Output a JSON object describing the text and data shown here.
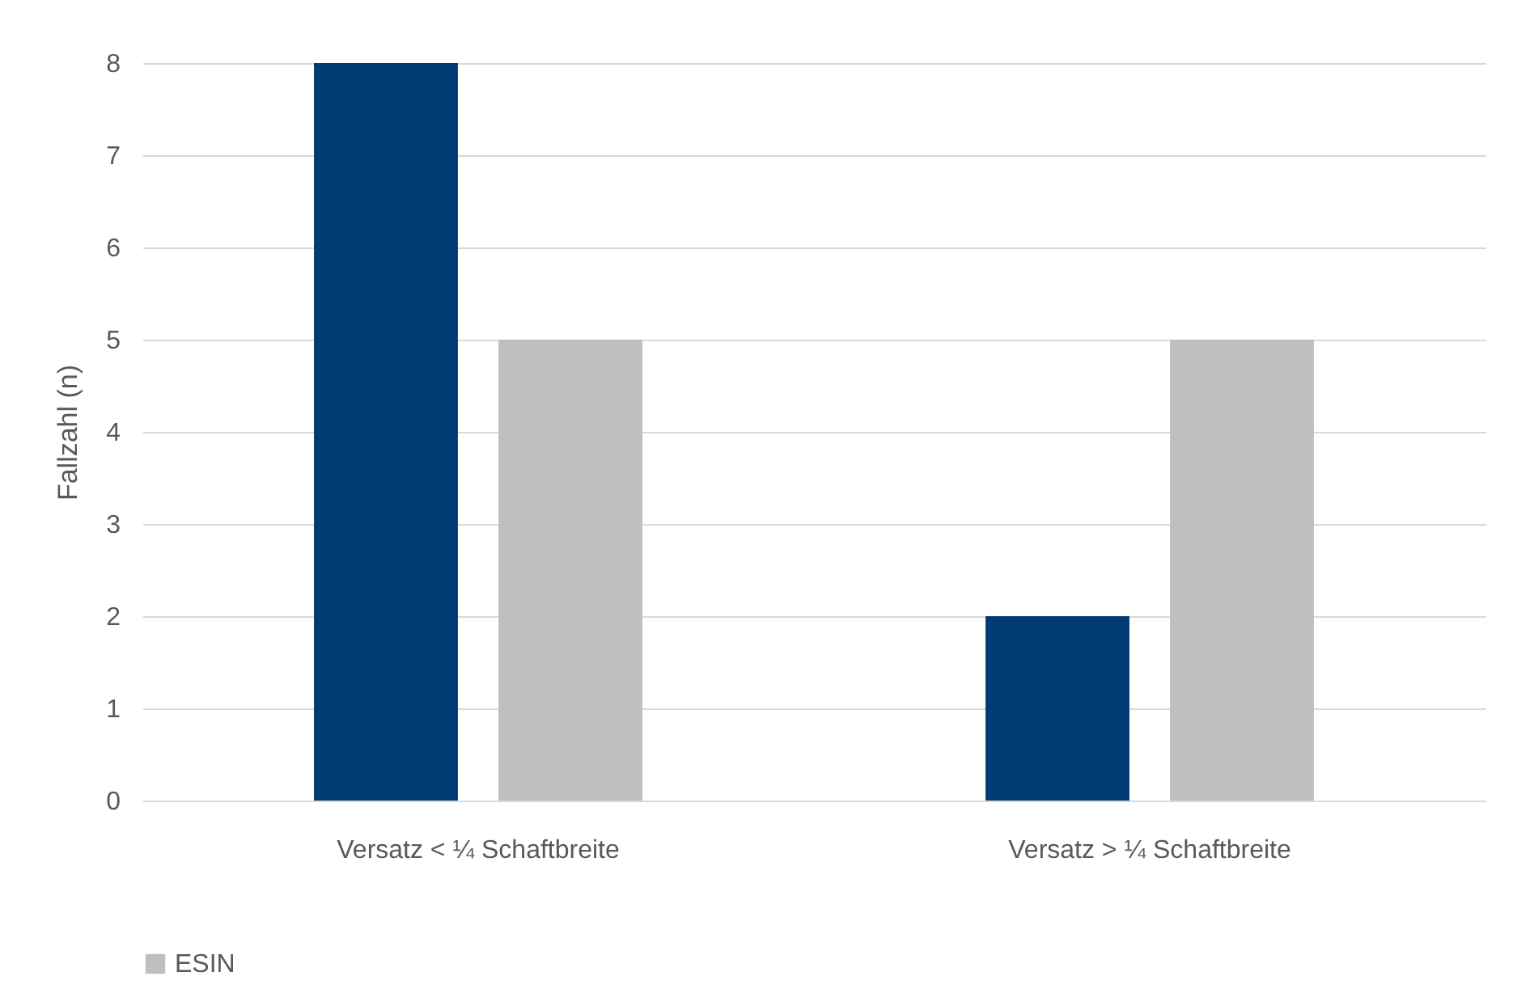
{
  "chart_data": {
    "type": "bar",
    "ylabel": "Fallzahl (n)",
    "categories": [
      "Versatz < ¼ Schaftbreite",
      "Versatz > ¼ Schaftbreite"
    ],
    "series": [
      {
        "color": "#003b73",
        "values": [
          8,
          2
        ]
      },
      {
        "name": "ESIN",
        "color": "#bfbfbf",
        "values": [
          5,
          5
        ]
      }
    ],
    "ylim": [
      0,
      8
    ],
    "yticks": [
      0,
      1,
      2,
      3,
      4,
      5,
      6,
      7,
      8
    ],
    "grid": "y",
    "legend": "bottom"
  }
}
